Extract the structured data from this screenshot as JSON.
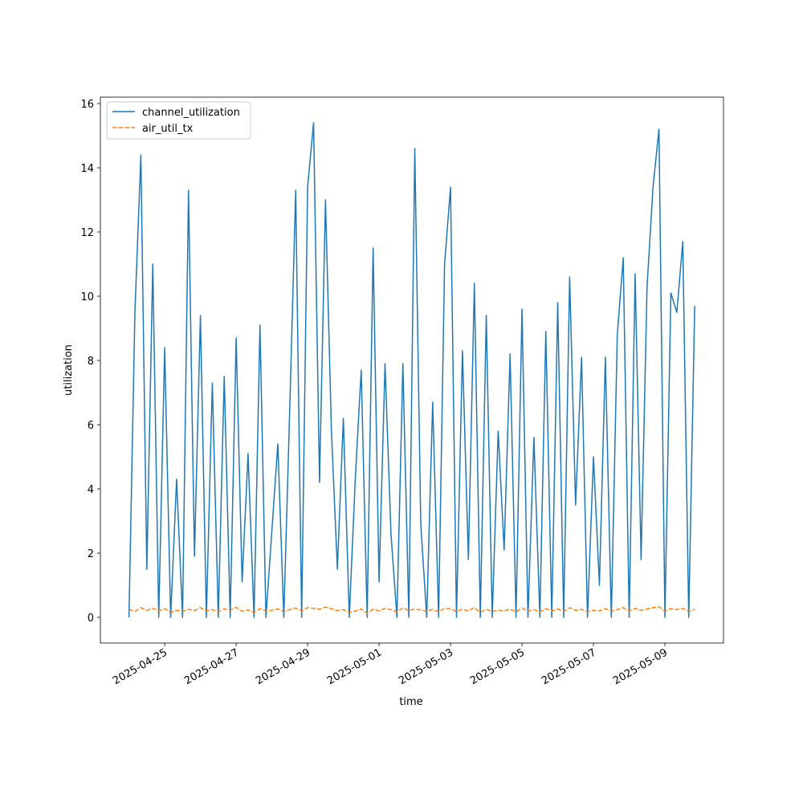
{
  "chart_data": {
    "type": "line",
    "xlabel": "time",
    "ylabel": "utilization",
    "x": [
      "2025-04-24T00:00",
      "2025-04-24T04:00",
      "2025-04-24T08:00",
      "2025-04-24T12:00",
      "2025-04-24T16:00",
      "2025-04-24T20:00",
      "2025-04-25T00:00",
      "2025-04-25T04:00",
      "2025-04-25T08:00",
      "2025-04-25T12:00",
      "2025-04-25T16:00",
      "2025-04-25T20:00",
      "2025-04-26T00:00",
      "2025-04-26T04:00",
      "2025-04-26T08:00",
      "2025-04-26T12:00",
      "2025-04-26T16:00",
      "2025-04-26T20:00",
      "2025-04-27T00:00",
      "2025-04-27T04:00",
      "2025-04-27T08:00",
      "2025-04-27T12:00",
      "2025-04-27T16:00",
      "2025-04-27T20:00",
      "2025-04-28T00:00",
      "2025-04-28T04:00",
      "2025-04-28T08:00",
      "2025-04-28T12:00",
      "2025-04-28T16:00",
      "2025-04-28T20:00",
      "2025-04-29T00:00",
      "2025-04-29T04:00",
      "2025-04-29T08:00",
      "2025-04-29T12:00",
      "2025-04-29T16:00",
      "2025-04-29T20:00",
      "2025-04-30T00:00",
      "2025-04-30T04:00",
      "2025-04-30T08:00",
      "2025-04-30T12:00",
      "2025-04-30T16:00",
      "2025-04-30T20:00",
      "2025-05-01T00:00",
      "2025-05-01T04:00",
      "2025-05-01T08:00",
      "2025-05-01T12:00",
      "2025-05-01T16:00",
      "2025-05-01T20:00",
      "2025-05-02T00:00",
      "2025-05-02T04:00",
      "2025-05-02T08:00",
      "2025-05-02T12:00",
      "2025-05-02T16:00",
      "2025-05-02T20:00",
      "2025-05-03T00:00",
      "2025-05-03T04:00",
      "2025-05-03T08:00",
      "2025-05-03T12:00",
      "2025-05-03T16:00",
      "2025-05-03T20:00",
      "2025-05-04T00:00",
      "2025-05-04T04:00",
      "2025-05-04T08:00",
      "2025-05-04T12:00",
      "2025-05-04T16:00",
      "2025-05-04T20:00",
      "2025-05-05T00:00",
      "2025-05-05T04:00",
      "2025-05-05T08:00",
      "2025-05-05T12:00",
      "2025-05-05T16:00",
      "2025-05-05T20:00",
      "2025-05-06T00:00",
      "2025-05-06T04:00",
      "2025-05-06T08:00",
      "2025-05-06T12:00",
      "2025-05-06T16:00",
      "2025-05-06T20:00",
      "2025-05-07T00:00",
      "2025-05-07T04:00",
      "2025-05-07T08:00",
      "2025-05-07T12:00",
      "2025-05-07T16:00",
      "2025-05-07T20:00",
      "2025-05-08T00:00",
      "2025-05-08T04:00",
      "2025-05-08T08:00",
      "2025-05-08T12:00",
      "2025-05-08T16:00",
      "2025-05-08T20:00",
      "2025-05-09T00:00",
      "2025-05-09T04:00",
      "2025-05-09T08:00",
      "2025-05-09T12:00",
      "2025-05-09T16:00",
      "2025-05-09T20:00"
    ],
    "series": [
      {
        "name": "channel_utilization",
        "color": "#1f77b4",
        "linestyle": "solid",
        "values": [
          0,
          9.5,
          14.4,
          1.5,
          11.0,
          0,
          8.4,
          0,
          4.3,
          0,
          13.3,
          1.9,
          9.4,
          0,
          7.3,
          0,
          7.5,
          0,
          8.7,
          1.1,
          5.1,
          0,
          9.1,
          0,
          2.7,
          5.4,
          0,
          6.5,
          13.3,
          0,
          13.4,
          15.4,
          4.2,
          13.0,
          5.8,
          1.5,
          6.2,
          0,
          4.3,
          7.7,
          0,
          11.5,
          1.1,
          7.9,
          2.6,
          0,
          7.9,
          0,
          14.6,
          2.9,
          0,
          6.7,
          0,
          11.0,
          13.4,
          0,
          8.3,
          1.8,
          10.4,
          0,
          9.4,
          0,
          5.8,
          2.1,
          8.2,
          0,
          9.6,
          0,
          5.6,
          0,
          8.9,
          0,
          9.8,
          0,
          10.6,
          3.5,
          8.1,
          0,
          5.0,
          1.0,
          8.1,
          0,
          8.8,
          11.2,
          0,
          10.7,
          1.8,
          10.3,
          13.4,
          15.2,
          0,
          10.1,
          9.5,
          11.7,
          0,
          9.7
        ]
      },
      {
        "name": "air_util_tx",
        "color": "#ff7f0e",
        "linestyle": "dashed",
        "values": [
          0.25,
          0.18,
          0.3,
          0.22,
          0.28,
          0.2,
          0.27,
          0.16,
          0.22,
          0.19,
          0.25,
          0.21,
          0.3,
          0.2,
          0.24,
          0.17,
          0.26,
          0.22,
          0.31,
          0.19,
          0.23,
          0.15,
          0.27,
          0.2,
          0.22,
          0.26,
          0.18,
          0.24,
          0.29,
          0.2,
          0.3,
          0.28,
          0.25,
          0.32,
          0.27,
          0.21,
          0.24,
          0.15,
          0.2,
          0.26,
          0.12,
          0.25,
          0.2,
          0.28,
          0.24,
          0.17,
          0.3,
          0.21,
          0.26,
          0.23,
          0.19,
          0.25,
          0.17,
          0.28,
          0.27,
          0.18,
          0.25,
          0.2,
          0.3,
          0.16,
          0.25,
          0.18,
          0.22,
          0.2,
          0.26,
          0.17,
          0.29,
          0.19,
          0.24,
          0.17,
          0.27,
          0.2,
          0.26,
          0.18,
          0.3,
          0.21,
          0.25,
          0.17,
          0.22,
          0.2,
          0.27,
          0.19,
          0.24,
          0.3,
          0.2,
          0.28,
          0.22,
          0.26,
          0.3,
          0.33,
          0.19,
          0.27,
          0.24,
          0.28,
          0.18,
          0.25
        ]
      }
    ],
    "xlim": [
      "2025-04-23T04:48",
      "2025-05-10T15:21"
    ],
    "xticks": [
      "2025-04-25",
      "2025-04-27",
      "2025-04-29",
      "2025-05-01",
      "2025-05-03",
      "2025-05-05",
      "2025-05-07",
      "2025-05-09"
    ],
    "ylim": [
      -0.8,
      16.2
    ],
    "yticks": [
      0,
      2,
      4,
      6,
      8,
      10,
      12,
      14,
      16
    ],
    "grid": false,
    "legend": "upper left"
  }
}
